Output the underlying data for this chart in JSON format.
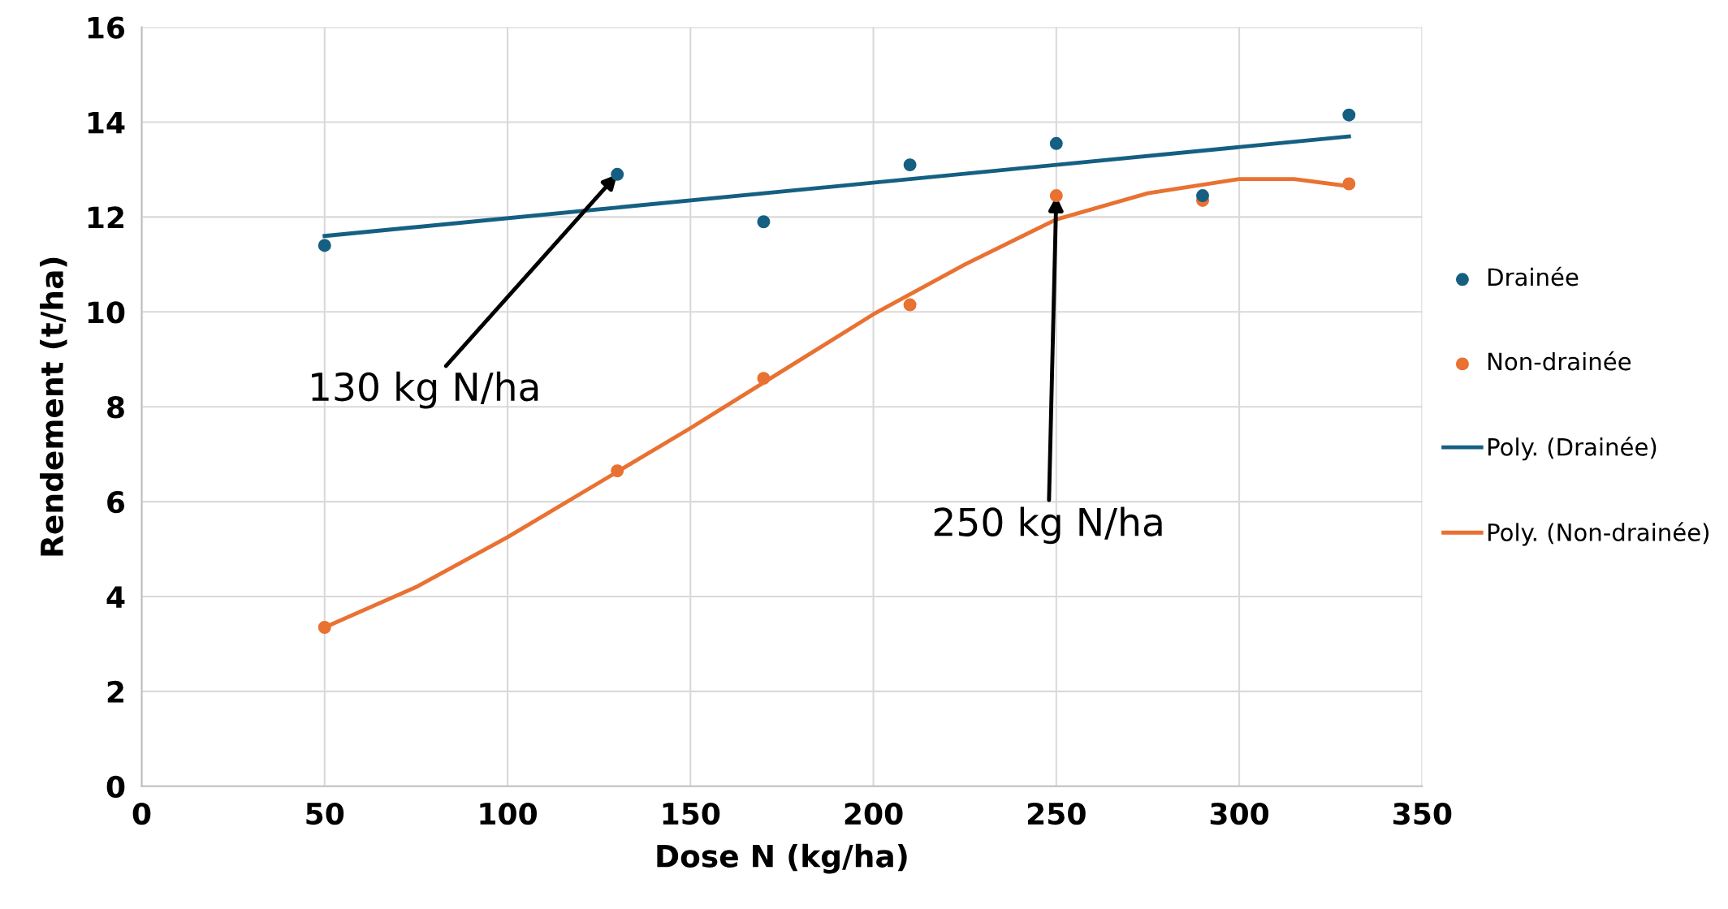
{
  "chart_data": {
    "type": "scatter",
    "xlabel": "Dose N (kg/ha)",
    "ylabel": "Rendement (t/ha)",
    "xlim": [
      0,
      350
    ],
    "xticks": [
      0,
      50,
      100,
      150,
      200,
      250,
      300,
      350
    ],
    "ylim": [
      0,
      16
    ],
    "yticks": [
      0,
      2,
      4,
      6,
      8,
      10,
      12,
      14,
      16
    ],
    "grid": true,
    "legend": "right",
    "series": [
      {
        "name": "Drainée",
        "marker": "circle",
        "color": "#156082",
        "x": [
          50,
          130,
          170,
          210,
          250,
          290,
          330
        ],
        "values": [
          11.4,
          12.9,
          11.9,
          13.1,
          13.55,
          12.45,
          14.15
        ]
      },
      {
        "name": "Non-drainée",
        "marker": "circle",
        "color": "#e97132",
        "x": [
          50,
          130,
          170,
          210,
          250,
          290,
          330
        ],
        "values": [
          3.35,
          6.65,
          8.6,
          10.15,
          12.45,
          12.35,
          12.7
        ]
      },
      {
        "name": "Poly. (Drainée)",
        "type": "line",
        "color": "#156082",
        "x": [
          50,
          330
        ],
        "values": [
          11.6,
          13.7
        ]
      },
      {
        "name": "Poly. (Non-drainée)",
        "type": "line",
        "color": "#e97132",
        "x": [
          50,
          75,
          100,
          125,
          150,
          175,
          200,
          225,
          250,
          275,
          300,
          315,
          330
        ],
        "values": [
          3.35,
          4.2,
          5.25,
          6.4,
          7.55,
          8.75,
          9.95,
          11.0,
          11.95,
          12.5,
          12.8,
          12.8,
          12.65
        ]
      }
    ],
    "annotations": [
      {
        "text": "130 kg N/ha",
        "x": 130,
        "y": 12.9
      },
      {
        "text": "250 kg N/ha",
        "x": 250,
        "y": 12.45
      }
    ]
  }
}
